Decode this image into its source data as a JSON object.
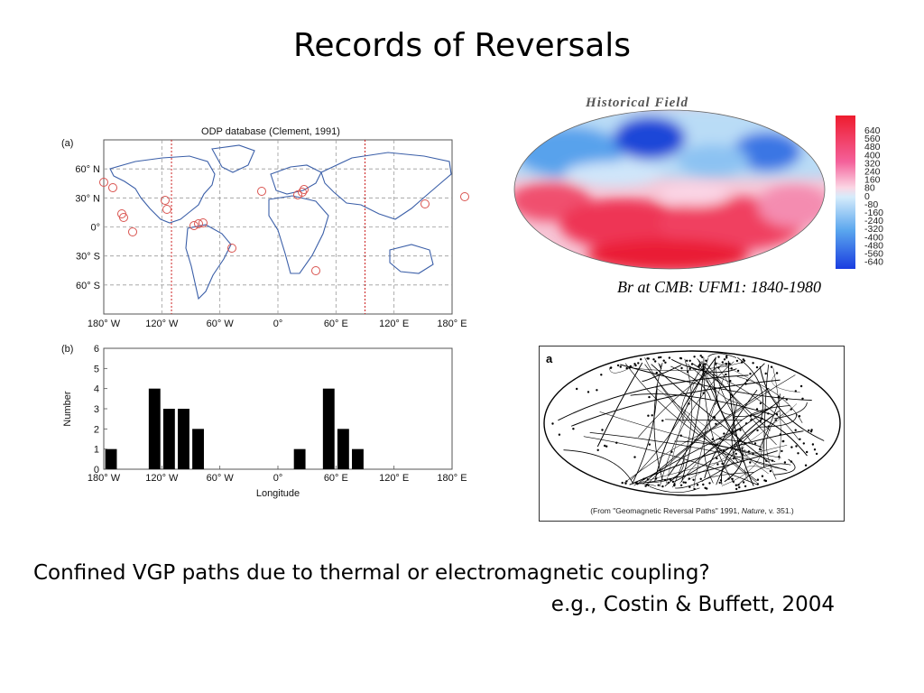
{
  "slide": {
    "title": "Records of Reversals",
    "bottom_line1": "Confined VGP paths due to thermal or electromagnetic coupling?",
    "bottom_line2": "e.g.,  Costin & Buffett, 2004"
  },
  "map_panel": {
    "panel_label": "(a)",
    "title": "ODP database (Clement, 1991)",
    "lat_labels": [
      "60° N",
      "30° N",
      "0°",
      "30° S",
      "60° S"
    ],
    "lon_labels": [
      "180° W",
      "120° W",
      "60° W",
      "0°",
      "60° E",
      "120° E",
      "180° E"
    ],
    "grid_color": "#9a9a9a",
    "site_color": "#d9534f",
    "marker_color": "#cc2222"
  },
  "historical_field": {
    "title": "Historical Field",
    "colorbar_labels": [
      "640",
      "560",
      "480",
      "400",
      "320",
      "240",
      "160",
      "80",
      "0",
      "-80",
      "-160",
      "-240",
      "-320",
      "-400",
      "-480",
      "-560",
      "-640"
    ],
    "caption": "Br at CMB:  UFM1: 1840-1980",
    "positive_color": "#e8303f",
    "negative_color": "#2a62d8"
  },
  "vgp_panel": {
    "panel_label": "a",
    "caption_pre": "(From \"Geomagnetic Reversal Paths\" 1991, ",
    "caption_italic": "Nature",
    "caption_post": ", v. 351.)"
  },
  "chart_data": {
    "type": "bar",
    "panel_label": "(b)",
    "xlabel": "Longitude",
    "ylabel": "Number",
    "x_tick_labels": [
      "180° W",
      "120° W",
      "60° W",
      "0°",
      "60° E",
      "120° E",
      "180° E"
    ],
    "x_ticks": [
      -180,
      -120,
      -60,
      0,
      60,
      120,
      180
    ],
    "y_ticks": [
      0,
      1,
      2,
      3,
      4,
      5,
      6
    ],
    "xlim": [
      -180,
      180
    ],
    "ylim": [
      0,
      6
    ],
    "bin_width": 15,
    "bins": [
      {
        "x": -172.5,
        "value": 1
      },
      {
        "x": -127.5,
        "value": 4
      },
      {
        "x": -112.5,
        "value": 3
      },
      {
        "x": -97.5,
        "value": 3
      },
      {
        "x": -82.5,
        "value": 2
      },
      {
        "x": 22.5,
        "value": 1
      },
      {
        "x": 52.5,
        "value": 4
      },
      {
        "x": 67.5,
        "value": 2
      },
      {
        "x": 82.5,
        "value": 1
      }
    ],
    "bar_color": "#000000",
    "grid": false
  }
}
